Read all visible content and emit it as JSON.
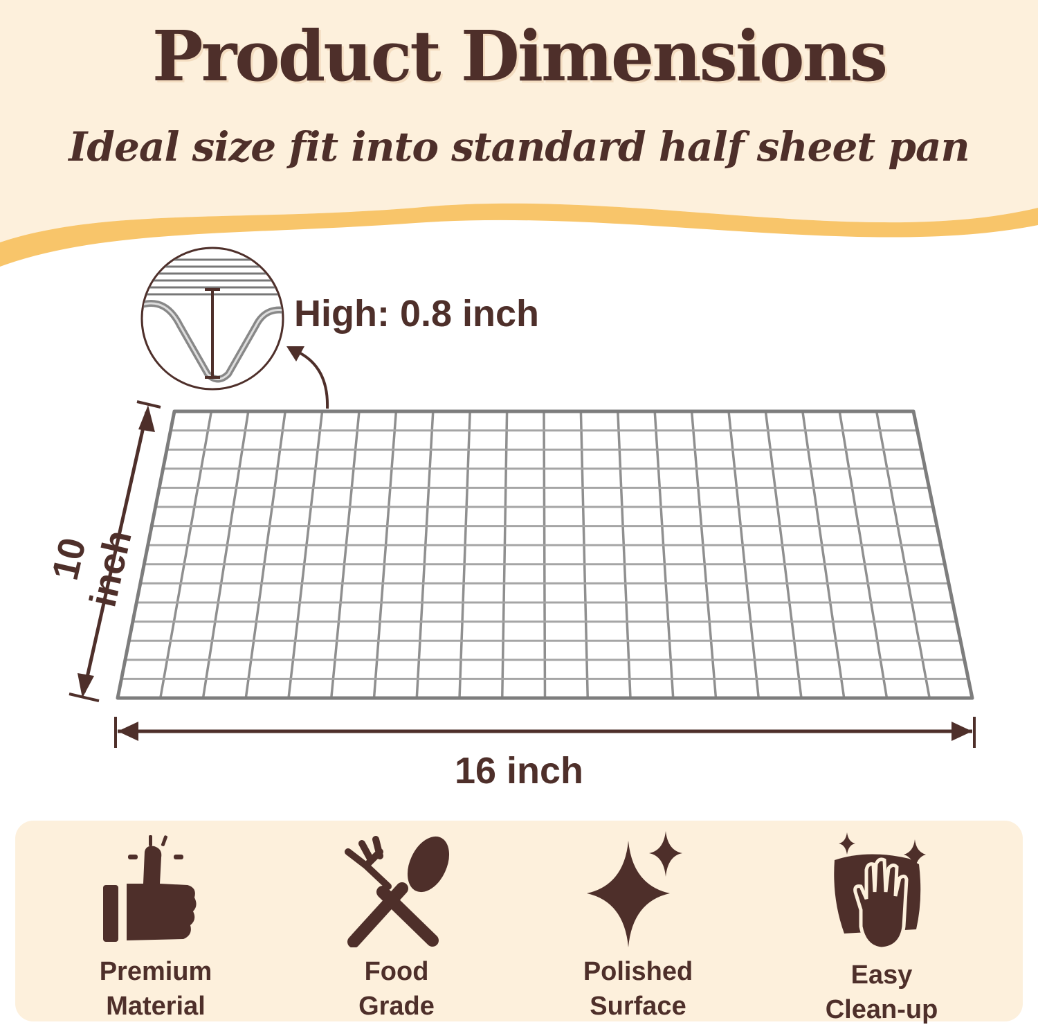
{
  "header": {
    "title": "Product Dimensions",
    "subtitle": "Ideal size fit into standard half sheet pan"
  },
  "dimensions": {
    "height": "High: 0.8 inch",
    "depth": "10 inch",
    "width": "16 inch"
  },
  "features": [
    {
      "icon": "thumbs-up-icon",
      "line1": "Premium",
      "line2": "Material"
    },
    {
      "icon": "fork-spoon-icon",
      "line1": "Food",
      "line2": "Grade"
    },
    {
      "icon": "sparkle-icon",
      "line1": "Polished",
      "line2": "Surface"
    },
    {
      "icon": "hand-wipe-icon",
      "line1": "Easy",
      "line2": "Clean-up"
    }
  ],
  "colors": {
    "brown": "#4e2f2a",
    "cream": "#fdf0dc",
    "wave": "#f8c56a",
    "wire": "#9a9a9a"
  }
}
